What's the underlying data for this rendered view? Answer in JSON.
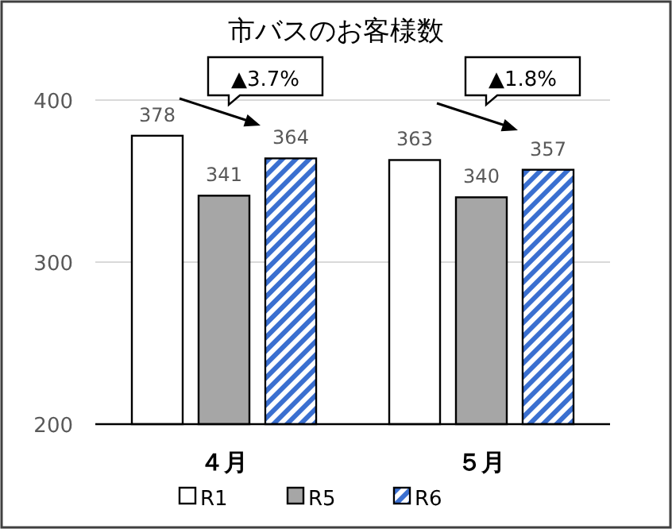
{
  "chart_data": {
    "type": "bar",
    "title": "市バスのお客様数",
    "categories": [
      "４月",
      "５月"
    ],
    "series": [
      {
        "name": "R1",
        "color": "#ffffff",
        "values": [
          378,
          363
        ]
      },
      {
        "name": "R5",
        "color": "#a6a6a6",
        "values": [
          341,
          340
        ]
      },
      {
        "name": "R6",
        "color": "#3a6fd0",
        "values": [
          364,
          357
        ]
      }
    ],
    "ylim": [
      200,
      400
    ],
    "yticks": [
      200,
      300,
      400
    ],
    "grid": "y",
    "legend": "bottom",
    "data_labels": true,
    "annotations": [
      "▲3.7%",
      "▲1.8%"
    ]
  }
}
